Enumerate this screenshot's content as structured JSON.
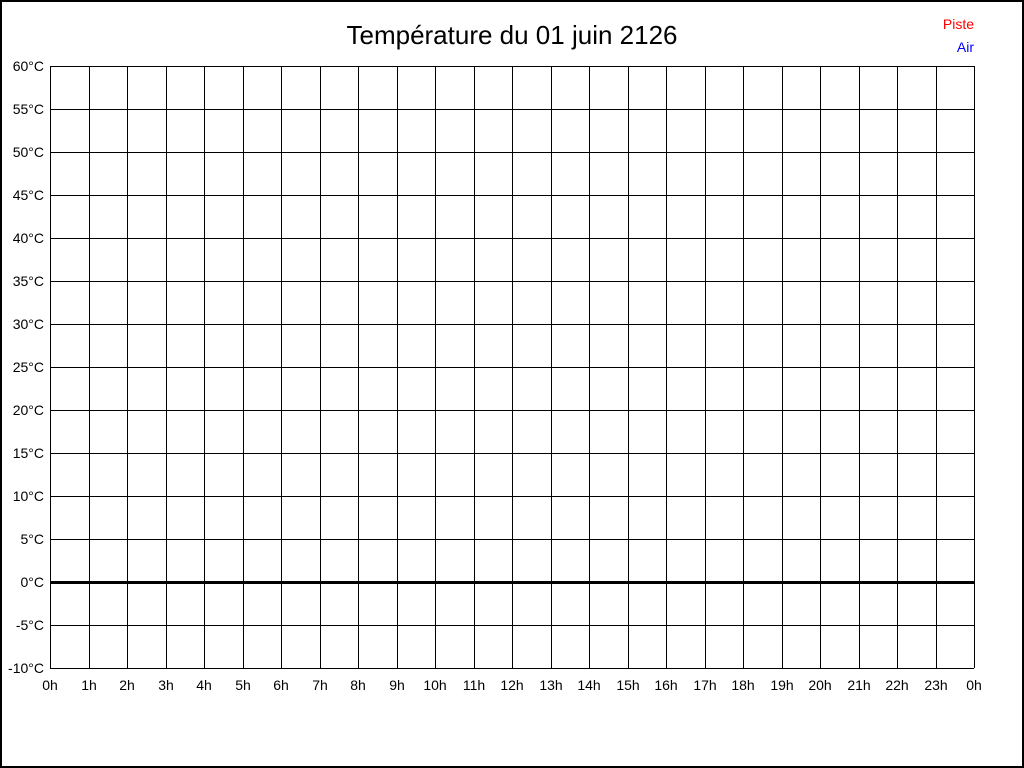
{
  "title": "Température du 01 juin 2126",
  "legend": {
    "items": [
      {
        "label": "Piste",
        "color": "#ff0000"
      },
      {
        "label": "Air",
        "color": "#0000ff"
      }
    ]
  },
  "chart_data": {
    "type": "line",
    "title": "Température du 01 juin 2126",
    "xlabel": "",
    "ylabel": "",
    "x_tick_labels": [
      "0h",
      "1h",
      "2h",
      "3h",
      "4h",
      "5h",
      "6h",
      "7h",
      "8h",
      "9h",
      "10h",
      "11h",
      "12h",
      "13h",
      "14h",
      "15h",
      "16h",
      "17h",
      "18h",
      "19h",
      "20h",
      "21h",
      "22h",
      "23h",
      "0h"
    ],
    "y_tick_labels": [
      "60°C",
      "55°C",
      "50°C",
      "45°C",
      "40°C",
      "35°C",
      "30°C",
      "25°C",
      "20°C",
      "15°C",
      "10°C",
      "5°C",
      "0°C",
      "-5°C",
      "-10°C"
    ],
    "ylim": [
      -10,
      60
    ],
    "ytick_step": 5,
    "grid": true,
    "grid_color": "#000000",
    "zero_line": {
      "value": 0,
      "bold": true,
      "color": "#000000"
    },
    "legend_position": "top-right",
    "series": [
      {
        "name": "Piste",
        "color": "#ff0000",
        "values": []
      },
      {
        "name": "Air",
        "color": "#0000ff",
        "values": []
      }
    ]
  }
}
